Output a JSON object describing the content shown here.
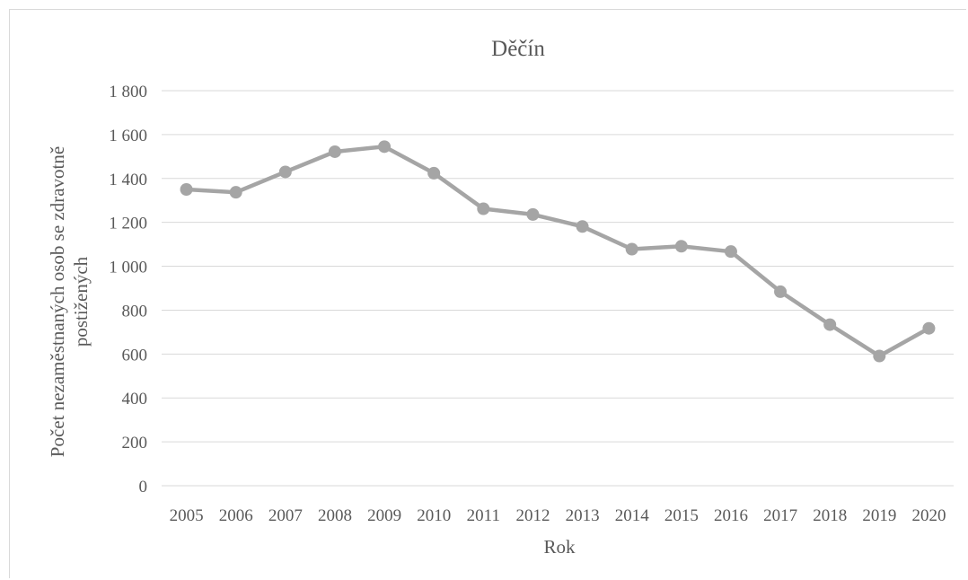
{
  "chart_data": {
    "type": "line",
    "title": "Děčín",
    "xlabel": "Rok",
    "ylabel_lines": [
      "Počet nezaměstnaných osob se zdravotně",
      "postižených"
    ],
    "x": [
      "2005",
      "2006",
      "2007",
      "2008",
      "2009",
      "2010",
      "2011",
      "2012",
      "2013",
      "2014",
      "2015",
      "2016",
      "2017",
      "2018",
      "2019",
      "2020"
    ],
    "series": [
      {
        "values": [
          1350,
          1337,
          1430,
          1522,
          1545,
          1424,
          1262,
          1236,
          1181,
          1078,
          1091,
          1067,
          884,
          734,
          591,
          717
        ]
      }
    ],
    "ylim": [
      0,
      1800
    ],
    "yticks": [
      0,
      200,
      400,
      600,
      800,
      1000,
      1200,
      1400,
      1600,
      1800
    ],
    "ytick_labels": [
      "0",
      "200",
      "400",
      "600",
      "800",
      "1 000",
      "1 200",
      "1 400",
      "1 600",
      "1 800"
    ],
    "grid": true,
    "legend": "none",
    "colors": {
      "series": "#a5a5a5",
      "grid": "#d9d9d9",
      "text": "#595959"
    }
  }
}
